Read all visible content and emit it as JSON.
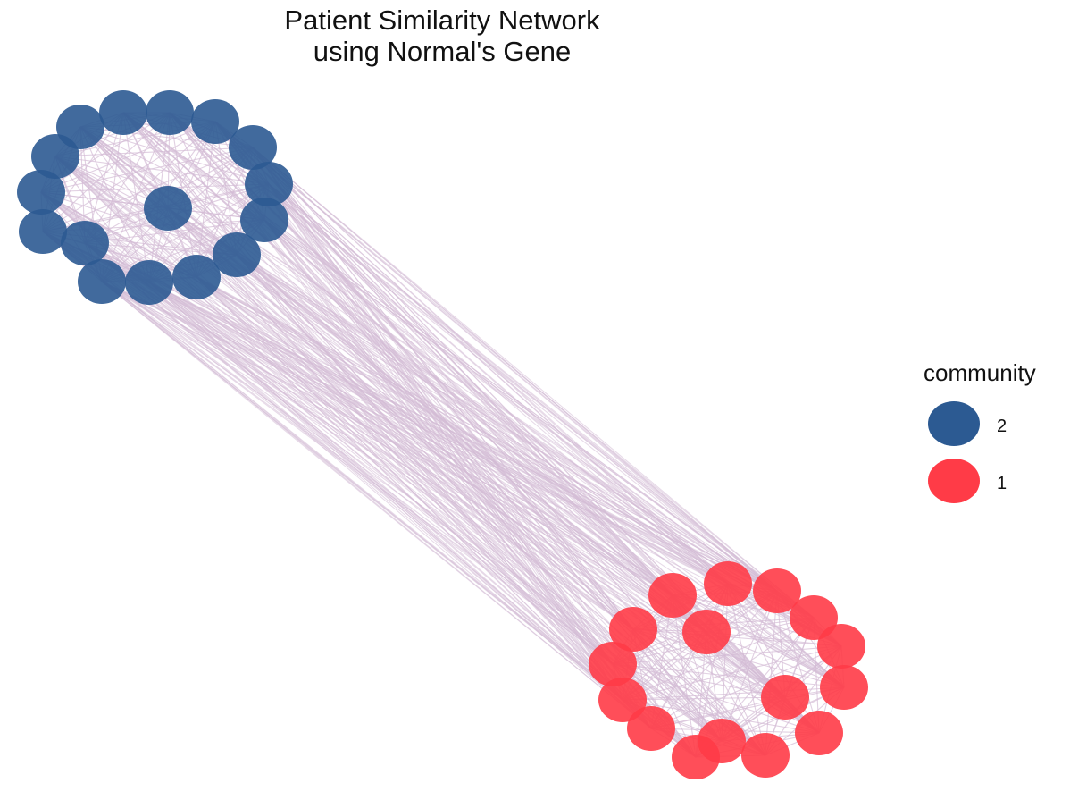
{
  "title_line1": "Patient Similarity Network",
  "title_line2": "using Normal's Gene",
  "legend": {
    "title": "community",
    "items": [
      {
        "label": "2",
        "color": "#2C5A92"
      },
      {
        "label": "1",
        "color": "#FF3B47"
      }
    ]
  },
  "edge_color": "#D4BCD6"
}
